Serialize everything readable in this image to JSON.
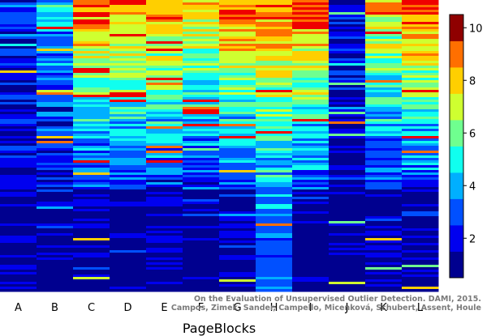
{
  "chart_data": {
    "type": "heatmap",
    "title": "",
    "xlabel": "PageBlocks",
    "ylabel": "",
    "categories": [
      "A",
      "B",
      "C",
      "D",
      "E",
      "F",
      "G",
      "H",
      "I",
      "J",
      "K",
      "L"
    ],
    "colorbar": {
      "range": [
        0.5,
        10.5
      ],
      "ticks": [
        2,
        4,
        6,
        8,
        10
      ],
      "colormap": "jet"
    },
    "grid": false,
    "legend": "colorbar right",
    "column_profiles": {
      "A": {
        "top_level": 2.5,
        "bottom_level": 1.0
      },
      "B": {
        "top_level": 4.2,
        "bottom_level": 1.0
      },
      "C": {
        "top_level": 9.5,
        "bottom_level": 1.0
      },
      "D": {
        "top_level": 9.0,
        "bottom_level": 1.0
      },
      "E": {
        "top_level": 9.0,
        "bottom_level": 1.1
      },
      "F": {
        "top_level": 8.0,
        "bottom_level": 1.0
      },
      "G": {
        "top_level": 9.5,
        "bottom_level": 1.1
      },
      "H": {
        "top_level": 9.0,
        "bottom_level": 3.0
      },
      "I": {
        "top_level": 10.0,
        "bottom_level": 1.0
      },
      "J": {
        "top_level": 1.5,
        "bottom_level": 1.0
      },
      "K": {
        "top_level": 8.0,
        "bottom_level": 1.1
      },
      "L": {
        "top_level": 10.0,
        "bottom_level": 1.0
      }
    }
  },
  "watermark": {
    "line1": "On the Evaluation of Unsupervised Outlier Detection. DAMI, 2015.",
    "line2": "Campos, Zimek, Sander, Campello, Micenková, Schubert, Assent, Houle"
  }
}
